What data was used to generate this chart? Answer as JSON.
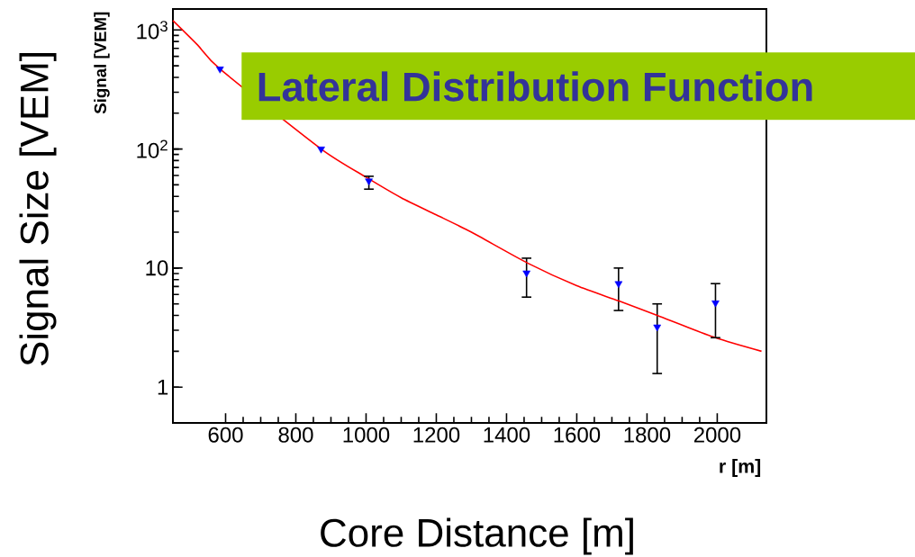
{
  "chart_data": {
    "type": "scatter",
    "title": "Lateral Distribution Function",
    "xlabel": "Core Distance [m]",
    "ylabel": "Signal Size [VEM]",
    "annotations": [
      "Signal [VEM]",
      "r [m]"
    ],
    "log": "y",
    "xlim": [
      450,
      2140
    ],
    "ylim": [
      0.5,
      1500
    ],
    "xticks": [
      600,
      800,
      1000,
      1200,
      1400,
      1600,
      1800,
      2000
    ],
    "yticks": [
      1,
      10,
      {
        "value": 100,
        "label": "10$^{2}$"
      },
      {
        "value": 1000,
        "label": "10$^{3}$"
      }
    ],
    "series": [
      {
        "color": "#0000ff",
        "marker": "triangle",
        "x": [
          584,
          872,
          1008,
          1457,
          1719,
          1829,
          1995
        ],
        "values": [
          470,
          100,
          54,
          9.1,
          7.4,
          3.2,
          5.1
        ],
        "errors": [
          null,
          null,
          [
            46,
            59
          ],
          [
            5.7,
            12.1
          ],
          [
            4.4,
            10.0
          ],
          [
            1.3,
            5.0
          ],
          [
            2.6,
            7.4
          ]
        ]
      },
      {
        "type": "line",
        "color": "#ff0000",
        "marker": "none",
        "x": [
          450,
          520,
          584,
          872,
          1000,
          1100,
          1200,
          1300,
          1460,
          1600,
          1719,
          1829,
          1995,
          2126
        ],
        "values": [
          1200,
          750,
          470,
          100,
          58,
          39,
          28,
          20,
          11,
          7.1,
          5.3,
          4.0,
          2.6,
          2.0
        ]
      }
    ]
  }
}
